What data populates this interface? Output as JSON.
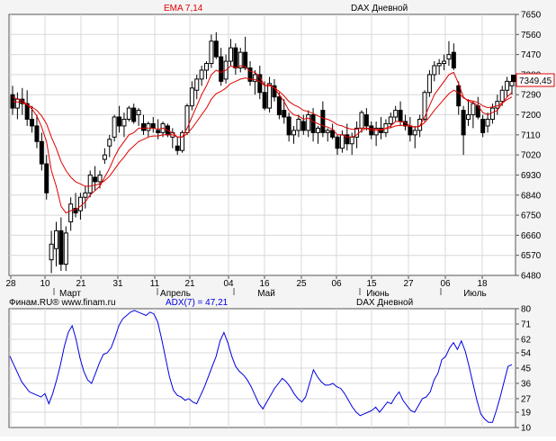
{
  "colors": {
    "panel_bg": "#ffffff",
    "frame_bg": "#f4f4f4",
    "border": "#555555",
    "grid": "#d8d8d8",
    "candle": "#000000",
    "ema": "#e00000",
    "adx": "#0000e0",
    "price_box_border": "#e00000",
    "text": "#000000"
  },
  "chart_data": [
    {
      "type": "candlestick",
      "title": "DAX Дневной",
      "indicator_label": "EMA 7,14",
      "last_price_label": "7349,45",
      "y_ticks": [
        "7650",
        "7560",
        "7470",
        "7380",
        "7290",
        "7200",
        "7110",
        "7020",
        "6930",
        "6840",
        "6750",
        "6660",
        "6570",
        "6480"
      ],
      "ylim": [
        6480,
        7650
      ],
      "x_day_labels": [
        "28",
        "10",
        "21",
        "31",
        "11",
        "21",
        "04",
        "16",
        "25",
        "06",
        "15",
        "27",
        "06",
        "18"
      ],
      "x_month_labels": [
        "Март",
        "Апрель",
        "Май",
        "Июнь",
        "Июль"
      ],
      "grid": true,
      "series": [
        {
          "name": "DAX",
          "kind": "ohlc",
          "values": [
            [
              7290,
              7330,
              7200,
              7230
            ],
            [
              7230,
              7300,
              7180,
              7270
            ],
            [
              7270,
              7320,
              7200,
              7250
            ],
            [
              7250,
              7310,
              7150,
              7180
            ],
            [
              7180,
              7240,
              7120,
              7150
            ],
            [
              7150,
              7200,
              7050,
              7080
            ],
            [
              7080,
              7120,
              6950,
              6980
            ],
            [
              6980,
              7020,
              6820,
              6850
            ],
            [
              6550,
              6680,
              6490,
              6620
            ],
            [
              6600,
              6720,
              6520,
              6680
            ],
            [
              6680,
              6740,
              6500,
              6530
            ],
            [
              6530,
              6700,
              6500,
              6670
            ],
            [
              6720,
              6830,
              6680,
              6800
            ],
            [
              6780,
              6850,
              6740,
              6760
            ],
            [
              6770,
              6850,
              6730,
              6830
            ],
            [
              6830,
              6880,
              6780,
              6850
            ],
            [
              6850,
              6950,
              6830,
              6930
            ],
            [
              6920,
              6970,
              6860,
              6900
            ],
            [
              6900,
              6950,
              6870,
              6930
            ],
            [
              7000,
              7050,
              6980,
              7020
            ],
            [
              7060,
              7110,
              7010,
              7090
            ],
            [
              7100,
              7200,
              7080,
              7190
            ],
            [
              7190,
              7240,
              7120,
              7150
            ],
            [
              7150,
              7210,
              7100,
              7180
            ],
            [
              7180,
              7240,
              7170,
              7230
            ],
            [
              7230,
              7250,
              7160,
              7170
            ],
            [
              7200,
              7230,
              7150,
              7220
            ],
            [
              7160,
              7200,
              7110,
              7130
            ],
            [
              7130,
              7170,
              7100,
              7160
            ],
            [
              7160,
              7190,
              7120,
              7140
            ],
            [
              7130,
              7180,
              7090,
              7120
            ],
            [
              7120,
              7170,
              7100,
              7160
            ],
            [
              7150,
              7160,
              7100,
              7110
            ],
            [
              7100,
              7140,
              7050,
              7120
            ],
            [
              7060,
              7100,
              7020,
              7040
            ],
            [
              7040,
              7130,
              7030,
              7120
            ],
            [
              7120,
              7250,
              7110,
              7240
            ],
            [
              7240,
              7350,
              7220,
              7320
            ],
            [
              7310,
              7380,
              7270,
              7360
            ],
            [
              7360,
              7420,
              7330,
              7400
            ],
            [
              7400,
              7440,
              7360,
              7430
            ],
            [
              7430,
              7560,
              7410,
              7530
            ],
            [
              7530,
              7570,
              7450,
              7460
            ],
            [
              7460,
              7500,
              7330,
              7350
            ],
            [
              7360,
              7470,
              7340,
              7440
            ],
            [
              7440,
              7540,
              7420,
              7500
            ],
            [
              7500,
              7520,
              7380,
              7410
            ],
            [
              7410,
              7500,
              7390,
              7480
            ],
            [
              7480,
              7550,
              7400,
              7410
            ],
            [
              7410,
              7440,
              7330,
              7350
            ],
            [
              7350,
              7400,
              7290,
              7380
            ],
            [
              7380,
              7420,
              7270,
              7300
            ],
            [
              7300,
              7350,
              7220,
              7230
            ],
            [
              7230,
              7370,
              7210,
              7340
            ],
            [
              7330,
              7360,
              7260,
              7280
            ],
            [
              7280,
              7300,
              7180,
              7200
            ],
            [
              7220,
              7270,
              7160,
              7190
            ],
            [
              7190,
              7210,
              7080,
              7110
            ],
            [
              7110,
              7150,
              7070,
              7130
            ],
            [
              7130,
              7200,
              7100,
              7180
            ],
            [
              7170,
              7200,
              7110,
              7130
            ],
            [
              7130,
              7220,
              7100,
              7200
            ],
            [
              7200,
              7230,
              7080,
              7120
            ],
            [
              7120,
              7150,
              7070,
              7140
            ],
            [
              7220,
              7260,
              7100,
              7120
            ],
            [
              7120,
              7140,
              7080,
              7130
            ],
            [
              7130,
              7160,
              7090,
              7100
            ],
            [
              7100,
              7110,
              7020,
              7050
            ],
            [
              7050,
              7130,
              7030,
              7110
            ],
            [
              7110,
              7160,
              7040,
              7070
            ],
            [
              7070,
              7120,
              7020,
              7100
            ],
            [
              7100,
              7170,
              7050,
              7140
            ],
            [
              7140,
              7220,
              7120,
              7210
            ],
            [
              7200,
              7230,
              7130,
              7150
            ],
            [
              7150,
              7170,
              7090,
              7110
            ],
            [
              7110,
              7170,
              7060,
              7140
            ],
            [
              7140,
              7190,
              7090,
              7120
            ],
            [
              7120,
              7180,
              7100,
              7160
            ],
            [
              7160,
              7210,
              7140,
              7190
            ],
            [
              7190,
              7240,
              7170,
              7220
            ],
            [
              7220,
              7260,
              7150,
              7170
            ],
            [
              7170,
              7200,
              7130,
              7150
            ],
            [
              7150,
              7190,
              7080,
              7110
            ],
            [
              7110,
              7150,
              7050,
              7130
            ],
            [
              7130,
              7200,
              7100,
              7180
            ],
            [
              7180,
              7310,
              7170,
              7300
            ],
            [
              7300,
              7400,
              7280,
              7380
            ],
            [
              7380,
              7440,
              7350,
              7420
            ],
            [
              7420,
              7450,
              7380,
              7430
            ],
            [
              7430,
              7470,
              7400,
              7440
            ],
            [
              7450,
              7530,
              7420,
              7470
            ],
            [
              7480,
              7520,
              7400,
              7410
            ],
            [
              7330,
              7350,
              7200,
              7240
            ],
            [
              7220,
              7240,
              7020,
              7110
            ],
            [
              7180,
              7270,
              7150,
              7200
            ],
            [
              7200,
              7260,
              7140,
              7250
            ],
            [
              7240,
              7280,
              7180,
              7190
            ],
            [
              7180,
              7200,
              7100,
              7120
            ],
            [
              7150,
              7210,
              7120,
              7180
            ],
            [
              7180,
              7250,
              7160,
              7230
            ],
            [
              7230,
              7290,
              7200,
              7260
            ],
            [
              7260,
              7330,
              7240,
              7310
            ],
            [
              7310,
              7370,
              7280,
              7350
            ],
            [
              7330,
              7370,
              7290,
              7349
            ]
          ]
        },
        {
          "name": "EMA 7",
          "kind": "line",
          "values": [
            7280,
            7270,
            7265,
            7245,
            7225,
            7195,
            7145,
            7080,
            6950,
            6880,
            6790,
            6760,
            6770,
            6775,
            6790,
            6810,
            6840,
            6860,
            6880,
            6920,
            6960,
            7010,
            7050,
            7080,
            7110,
            7120,
            7140,
            7140,
            7140,
            7140,
            7135,
            7140,
            7130,
            7120,
            7100,
            7100,
            7140,
            7190,
            7240,
            7290,
            7330,
            7380,
            7400,
            7390,
            7400,
            7420,
            7410,
            7420,
            7415,
            7395,
            7390,
            7370,
            7330,
            7335,
            7320,
            7290,
            7260,
            7220,
            7200,
            7195,
            7180,
            7185,
            7170,
            7160,
            7150,
            7145,
            7135,
            7110,
            7110,
            7100,
            7100,
            7110,
            7130,
            7140,
            7130,
            7130,
            7130,
            7140,
            7150,
            7170,
            7170,
            7165,
            7150,
            7145,
            7150,
            7190,
            7240,
            7290,
            7320,
            7350,
            7380,
            7390,
            7340,
            7280,
            7260,
            7255,
            7240,
            7210,
            7200,
            7210,
            7220,
            7250,
            7280,
            7300
          ]
        },
        {
          "name": "EMA 14",
          "kind": "line",
          "values": [
            7260,
            7258,
            7255,
            7245,
            7235,
            7220,
            7195,
            7160,
            7100,
            7050,
            6990,
            6950,
            6920,
            6900,
            6890,
            6880,
            6880,
            6885,
            6890,
            6905,
            6925,
            6955,
            6985,
            7010,
            7040,
            7060,
            7080,
            7090,
            7100,
            7105,
            7105,
            7110,
            7110,
            7110,
            7100,
            7100,
            7115,
            7140,
            7170,
            7200,
            7230,
            7270,
            7295,
            7305,
            7320,
            7340,
            7350,
            7360,
            7365,
            7360,
            7358,
            7350,
            7330,
            7330,
            7320,
            7305,
            7285,
            7260,
            7245,
            7235,
            7220,
            7215,
            7205,
            7195,
            7185,
            7180,
            7170,
            7155,
            7150,
            7140,
            7135,
            7135,
            7140,
            7140,
            7138,
            7136,
            7135,
            7138,
            7142,
            7150,
            7152,
            7152,
            7148,
            7145,
            7148,
            7165,
            7190,
            7220,
            7245,
            7270,
            7295,
            7310,
            7300,
            7275,
            7265,
            7262,
            7255,
            7240,
            7232,
            7235,
            7240,
            7252,
            7268,
            7280
          ]
        }
      ]
    },
    {
      "type": "line",
      "source_label": "Финам.RU® www.finam.ru",
      "indicator_label": "ADX(7) = 47,21",
      "title": "DAX Дневной",
      "y_ticks": [
        "80",
        "71",
        "62",
        "54",
        "45",
        "36",
        "27",
        "19",
        "10"
      ],
      "ylim": [
        10,
        80
      ],
      "grid": true,
      "series": [
        {
          "name": "ADX(7)",
          "values": [
            52,
            47,
            42,
            37,
            34,
            31,
            30,
            29,
            28,
            30,
            24,
            30,
            38,
            47,
            58,
            66,
            70,
            62,
            51,
            43,
            38,
            36,
            42,
            48,
            53,
            54,
            57,
            63,
            70,
            74,
            76,
            78,
            79,
            78,
            77,
            76,
            78,
            77,
            72,
            62,
            51,
            40,
            32,
            29,
            28,
            26,
            27,
            25,
            24,
            29,
            34,
            40,
            46,
            52,
            61,
            66,
            60,
            52,
            46,
            43,
            41,
            38,
            34,
            29,
            24,
            21,
            25,
            29,
            33,
            36,
            39,
            37,
            34,
            30,
            27,
            25,
            28,
            36,
            44,
            40,
            37,
            35,
            35,
            36,
            34,
            33,
            30,
            26,
            22,
            19,
            17,
            18,
            19,
            20,
            22,
            19,
            22,
            25,
            24,
            28,
            31,
            26,
            23,
            20,
            19,
            23,
            27,
            28,
            31,
            38,
            42,
            50,
            52,
            57,
            60,
            56,
            61,
            55,
            46,
            36,
            26,
            18,
            15,
            13,
            13,
            20,
            28,
            37,
            46,
            47
          ]
        }
      ]
    }
  ]
}
